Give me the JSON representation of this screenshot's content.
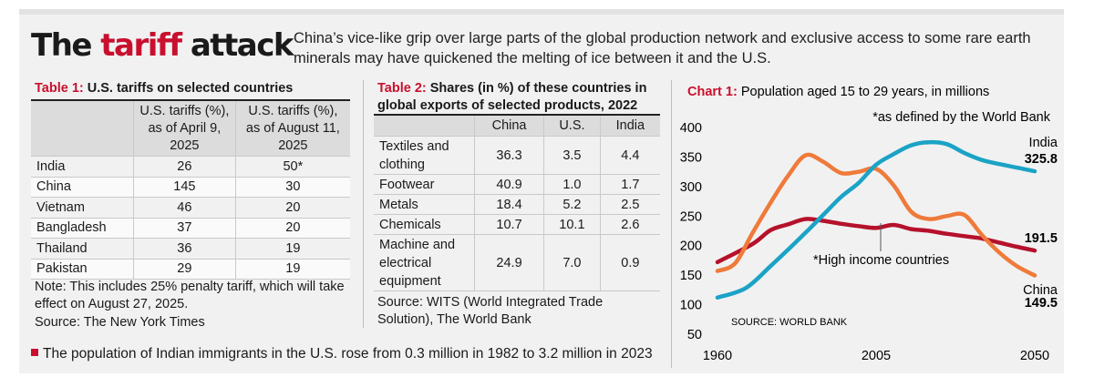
{
  "headline": {
    "part1": "The ",
    "accent": "tariff",
    "part2": " attack"
  },
  "dek": "China’s vice-like grip over large parts of the global production network and exclusive access to some rare earth minerals may have quickened the melting of ice between it and the U.S.",
  "table1": {
    "label": "Table 1:",
    "title": "U.S. tariffs on selected countries",
    "col1": "U.S. tariffs (%), as of  April 9, 2025",
    "col2": "U.S. tariffs (%), as of  August 11, 2025",
    "rows": [
      {
        "country": "India",
        "apr": "26",
        "aug": "50*"
      },
      {
        "country": "China",
        "apr": "145",
        "aug": "30"
      },
      {
        "country": "Vietnam",
        "apr": "46",
        "aug": "20"
      },
      {
        "country": "Bangladesh",
        "apr": "37",
        "aug": "20"
      },
      {
        "country": "Thailand",
        "apr": "36",
        "aug": "19"
      },
      {
        "country": "Pakistan",
        "apr": "29",
        "aug": "19"
      }
    ],
    "note": "Note: This includes 25% penalty tariff, which will take effect on August 27, 2025.",
    "source": "Source: The New York Times"
  },
  "table2": {
    "label": "Table 2:",
    "title": "Shares (in %) of these countries  in global exports of selected products, 2022",
    "headers": [
      "China",
      "U.S.",
      "India"
    ],
    "rows": [
      {
        "product": "Textiles and clothing",
        "china": "36.3",
        "us": "3.5",
        "india": "4.4"
      },
      {
        "product": "Footwear",
        "china": "40.9",
        "us": "1.0",
        "india": "1.7"
      },
      {
        "product": "Metals",
        "china": "18.4",
        "us": "5.2",
        "india": "2.5"
      },
      {
        "product": "Chemicals",
        "china": "10.7",
        "us": "10.1",
        "india": "2.6"
      },
      {
        "product": "Machine and electrical equipment",
        "china": "24.9",
        "us": "7.0",
        "india": "0.9"
      }
    ],
    "source": "Source: WITS (World Integrated Trade Solution), The World Bank"
  },
  "footnote": "The population of Indian immigrants in the U.S. rose from 0.3 million in 1982 to 3.2 million in 2023",
  "colors": {
    "accent": "#c8102e",
    "india": "#1ba3c6",
    "china": "#ef7a3a",
    "high_income": "#b5112b"
  },
  "chart_data": {
    "type": "line",
    "label": "Chart 1:",
    "title": "Population aged 15 to 29 years, in millions",
    "subtitle": "*as defined by the World Bank",
    "source": "SOURCE: WORLD BANK",
    "xlim": [
      1960,
      2050
    ],
    "ylim": [
      50,
      400
    ],
    "xticks": [
      1960,
      2005,
      2050
    ],
    "yticks": [
      50,
      100,
      150,
      200,
      250,
      300,
      350,
      400
    ],
    "series": [
      {
        "name": "India",
        "end_label": "325.8",
        "color": "#1ba3c6",
        "x": [
          1960,
          1968,
          1975,
          1980,
          1985,
          1990,
          1995,
          2000,
          2005,
          2010,
          2015,
          2020,
          2025,
          2030,
          2035,
          2040,
          2045,
          2050
        ],
        "y": [
          112,
          128,
          165,
          193,
          222,
          252,
          282,
          306,
          337,
          355,
          370,
          375,
          372,
          357,
          345,
          338,
          332,
          325.8
        ]
      },
      {
        "name": "China",
        "end_label": "149.5",
        "color": "#ef7a3a",
        "x": [
          1960,
          1965,
          1970,
          1975,
          1980,
          1985,
          1990,
          1995,
          2000,
          2005,
          2010,
          2015,
          2020,
          2025,
          2030,
          2035,
          2040,
          2045,
          2050
        ],
        "y": [
          157,
          170,
          222,
          272,
          318,
          353,
          342,
          323,
          325,
          330,
          302,
          257,
          245,
          250,
          252,
          218,
          188,
          165,
          149.5
        ]
      },
      {
        "name": "*High income countries",
        "end_label": "191.5",
        "color": "#b5112b",
        "x": [
          1960,
          1970,
          1975,
          1980,
          1985,
          1990,
          1995,
          2000,
          2005,
          2010,
          2015,
          2020,
          2025,
          2030,
          2035,
          2040,
          2045,
          2050
        ],
        "y": [
          172,
          203,
          226,
          236,
          245,
          242,
          237,
          233,
          230,
          235,
          228,
          225,
          220,
          216,
          212,
          205,
          198,
          191.5
        ]
      }
    ]
  }
}
